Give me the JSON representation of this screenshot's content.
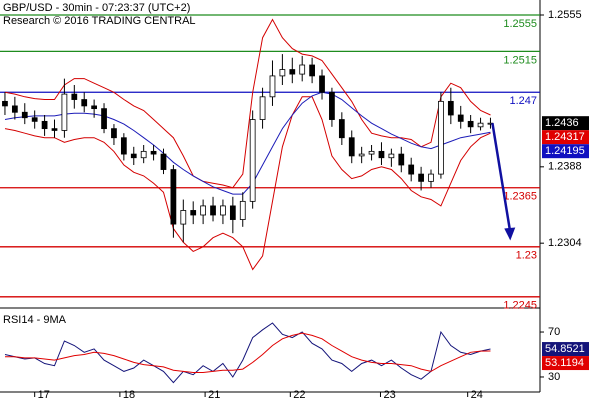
{
  "chart_data": [
    {
      "type": "candlestick",
      "title": "GBP/USD - 30min - 07:23:37 (UTC+2)",
      "subtitle": "Research © 2016 TRADING CENTRAL",
      "xlim": [
        -0.5,
        54
      ],
      "xticks": [
        {
          "value": 3,
          "label": "17"
        },
        {
          "value": 11.6,
          "label": "18"
        },
        {
          "value": 20.2,
          "label": "21"
        },
        {
          "value": 28.8,
          "label": "22"
        },
        {
          "value": 37.9,
          "label": "23"
        },
        {
          "value": 46.7,
          "label": "24"
        }
      ],
      "ylim": [
        1.2236,
        1.25715
      ],
      "yticks": [
        1.2555,
        1.2388,
        1.2304
      ],
      "candle_color": "#000000",
      "open": [
        1.246,
        1.2455,
        1.2448,
        1.2442,
        1.2438,
        1.243,
        1.2428,
        1.2468,
        1.2462,
        1.2455,
        1.2452,
        1.243,
        1.242,
        1.2402,
        1.2398,
        1.2405,
        1.2402,
        1.2385,
        1.2325,
        1.234,
        1.2335,
        1.2345,
        1.2335,
        1.2345,
        1.233,
        1.235,
        1.244,
        1.2465,
        1.2488,
        1.2495,
        1.249,
        1.25,
        1.2488,
        1.247,
        1.244,
        1.242,
        1.24,
        1.2402,
        1.2405,
        1.2398,
        1.2402,
        1.239,
        1.238,
        1.2372,
        1.238,
        1.246,
        1.2445,
        1.2438,
        1.2432,
        1.2436
      ],
      "high": [
        1.247,
        1.2465,
        1.2458,
        1.245,
        1.2445,
        1.244,
        1.2485,
        1.2478,
        1.247,
        1.2462,
        1.2458,
        1.2435,
        1.2425,
        1.241,
        1.2412,
        1.2412,
        1.2408,
        1.239,
        1.2352,
        1.235,
        1.2352,
        1.2355,
        1.2352,
        1.2355,
        1.236,
        1.245,
        1.2475,
        1.2505,
        1.2512,
        1.2508,
        1.251,
        1.2508,
        1.2495,
        1.2475,
        1.2448,
        1.2428,
        1.241,
        1.2412,
        1.2415,
        1.2408,
        1.241,
        1.2398,
        1.2388,
        1.2385,
        1.247,
        1.2475,
        1.2455,
        1.2445,
        1.2442,
        1.2442
      ],
      "low": [
        1.2445,
        1.244,
        1.2435,
        1.243,
        1.2422,
        1.242,
        1.242,
        1.2452,
        1.2448,
        1.2442,
        1.2425,
        1.2412,
        1.2395,
        1.239,
        1.2392,
        1.2395,
        1.238,
        1.231,
        1.2305,
        1.2325,
        1.2325,
        1.2328,
        1.2325,
        1.2315,
        1.2322,
        1.2342,
        1.243,
        1.2455,
        1.2478,
        1.248,
        1.2482,
        1.248,
        1.2462,
        1.2432,
        1.2412,
        1.2392,
        1.2392,
        1.2395,
        1.239,
        1.2388,
        1.2382,
        1.2372,
        1.2362,
        1.2365,
        1.2375,
        1.2435,
        1.243,
        1.2425,
        1.2428,
        1.243
      ],
      "close": [
        1.2455,
        1.2448,
        1.2442,
        1.2438,
        1.243,
        1.2428,
        1.2468,
        1.2462,
        1.2455,
        1.2452,
        1.243,
        1.242,
        1.2402,
        1.2398,
        1.2405,
        1.2402,
        1.2385,
        1.2325,
        1.234,
        1.2335,
        1.2345,
        1.2335,
        1.2345,
        1.233,
        1.235,
        1.244,
        1.2465,
        1.2488,
        1.2495,
        1.249,
        1.25,
        1.2488,
        1.247,
        1.244,
        1.242,
        1.24,
        1.2402,
        1.2405,
        1.2398,
        1.2402,
        1.239,
        1.238,
        1.2372,
        1.238,
        1.246,
        1.2445,
        1.2438,
        1.2432,
        1.2436,
        1.2436
      ],
      "bands": {
        "color": "#d40000",
        "upper": [
          1.247,
          1.2468,
          1.2465,
          1.2463,
          1.2462,
          1.2462,
          1.2478,
          1.2485,
          1.2485,
          1.248,
          1.2475,
          1.247,
          1.2462,
          1.2455,
          1.245,
          1.244,
          1.243,
          1.242,
          1.24,
          1.2378,
          1.2372,
          1.237,
          1.2368,
          1.2365,
          1.238,
          1.247,
          1.253,
          1.255,
          1.253,
          1.2518,
          1.2512,
          1.251,
          1.2505,
          1.249,
          1.2475,
          1.246,
          1.244,
          1.2425,
          1.2422,
          1.242,
          1.242,
          1.2418,
          1.241,
          1.2415,
          1.2465,
          1.248,
          1.2475,
          1.246,
          1.245,
          1.2445
        ],
        "lower": [
          1.243,
          1.2428,
          1.2425,
          1.2422,
          1.242,
          1.242,
          1.2415,
          1.2418,
          1.242,
          1.242,
          1.2415,
          1.2405,
          1.239,
          1.2382,
          1.2378,
          1.237,
          1.236,
          1.232,
          1.2305,
          1.2295,
          1.23,
          1.231,
          1.2315,
          1.231,
          1.23,
          1.2275,
          1.229,
          1.235,
          1.241,
          1.2445,
          1.2465,
          1.2465,
          1.244,
          1.24,
          1.2385,
          1.2375,
          1.2378,
          1.2385,
          1.2388,
          1.2385,
          1.2375,
          1.2362,
          1.2355,
          1.2352,
          1.2345,
          1.237,
          1.2395,
          1.241,
          1.242,
          1.2425
        ]
      },
      "ma": {
        "color": "#1c1cb8",
        "values": [
          1.244,
          1.2442,
          1.2443,
          1.2444,
          1.2444,
          1.2444,
          1.2446,
          1.2447,
          1.2447,
          1.2446,
          1.2444,
          1.244,
          1.2435,
          1.2428,
          1.242,
          1.2412,
          1.2403,
          1.2393,
          1.2385,
          1.2378,
          1.2372,
          1.2366,
          1.2362,
          1.2358,
          1.2358,
          1.237,
          1.239,
          1.241,
          1.243,
          1.2445,
          1.2458,
          1.2466,
          1.247,
          1.2468,
          1.2462,
          1.2453,
          1.2444,
          1.2436,
          1.243,
          1.2424,
          1.2419,
          1.2414,
          1.241,
          1.2408,
          1.2412,
          1.2416,
          1.242,
          1.2422,
          1.2424,
          1.2426
        ]
      },
      "levels": [
        {
          "value": 1.2555,
          "color": "#1e8c1e"
        },
        {
          "value": 1.2515,
          "color": "#1e8c1e"
        },
        {
          "value": 1.247,
          "color": "#1010c0"
        },
        {
          "value": 1.2365,
          "color": "#d40000"
        },
        {
          "value": 1.23,
          "color": "#d40000"
        },
        {
          "value": 1.2245,
          "color": "#d40000"
        }
      ],
      "arrow": {
        "x": [
          49.2,
          51
        ],
        "y": [
          1.2436,
          1.2307
        ],
        "color": "#1010a0"
      },
      "markers": [
        {
          "value": 1.24317,
          "color": "#e00000"
        },
        {
          "value": 1.24195,
          "color": "#1010c0"
        }
      ]
    },
    {
      "type": "line",
      "title": "RSI14 - 9MA",
      "xlim": [
        -0.5,
        54
      ],
      "ylim": [
        19.3,
        89.6
      ],
      "yticks": [
        30,
        70
      ],
      "series": [
        {
          "color": "#14147a",
          "values": [
            50,
            48,
            46,
            47,
            42,
            40,
            62,
            58,
            52,
            55,
            45,
            40,
            35,
            38,
            45,
            40,
            35,
            25,
            35,
            32,
            40,
            35,
            42,
            30,
            45,
            65,
            72,
            78,
            68,
            65,
            70,
            60,
            55,
            45,
            42,
            35,
            42,
            45,
            40,
            45,
            38,
            32,
            28,
            35,
            70,
            58,
            52,
            50,
            53,
            54.8521
          ]
        },
        {
          "color": "#e00000",
          "values": [
            48,
            48,
            47,
            47,
            46,
            45,
            47,
            49,
            50,
            52,
            51,
            49,
            46,
            43,
            41,
            40,
            39,
            36,
            35,
            34,
            34,
            35,
            36,
            36,
            37,
            43,
            50,
            58,
            64,
            67,
            69,
            67,
            64,
            58,
            53,
            48,
            45,
            43,
            42,
            42,
            41,
            40,
            37,
            35,
            40,
            44,
            48,
            52,
            53,
            53.1194
          ]
        }
      ]
    }
  ]
}
